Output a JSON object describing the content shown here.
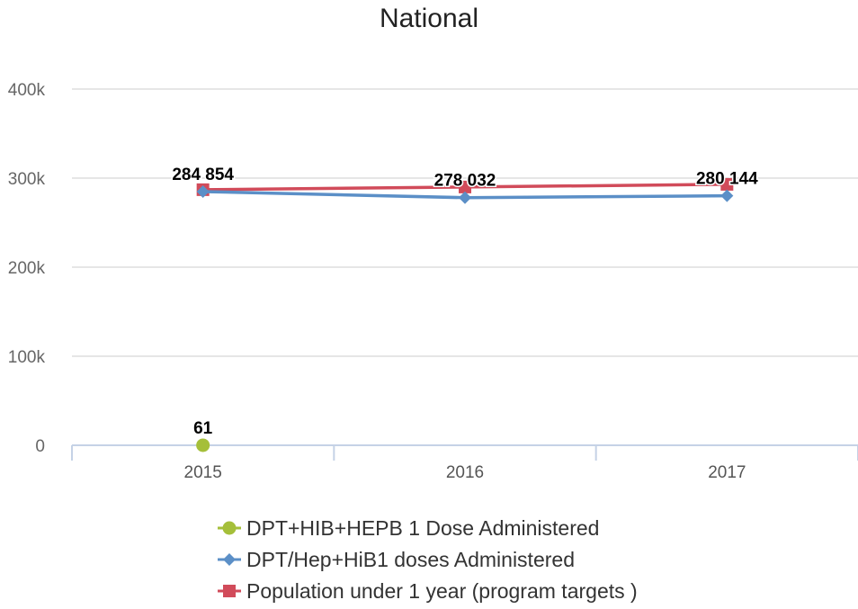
{
  "chart_data": {
    "type": "line",
    "title": "National",
    "categories": [
      "2015",
      "2016",
      "2017"
    ],
    "ylim": [
      0,
      400000
    ],
    "yticks": [
      {
        "value": 0,
        "label": "0"
      },
      {
        "value": 100000,
        "label": "100k"
      },
      {
        "value": 200000,
        "label": "200k"
      },
      {
        "value": 300000,
        "label": "300k"
      },
      {
        "value": 400000,
        "label": "400k"
      }
    ],
    "grid": true,
    "legend_position": "bottom",
    "series": [
      {
        "name": "DPT+HIB+HEPB 1 Dose Administered",
        "values": [
          61,
          null,
          null
        ],
        "labels": [
          "61",
          "",
          ""
        ],
        "color": "#a5bf3a",
        "marker": "circle"
      },
      {
        "name": "DPT/Hep+HiB1 doses Administered",
        "values": [
          284854,
          278032,
          280144
        ],
        "labels": [
          "284 854",
          "278 032",
          "280 144"
        ],
        "color": "#5b8fc7",
        "marker": "diamond"
      },
      {
        "name": "Population under 1 year (program targets )",
        "values": [
          287000,
          290000,
          293000
        ],
        "labels": [
          "",
          "",
          ""
        ],
        "color": "#d14b5a",
        "marker": "square"
      }
    ]
  }
}
